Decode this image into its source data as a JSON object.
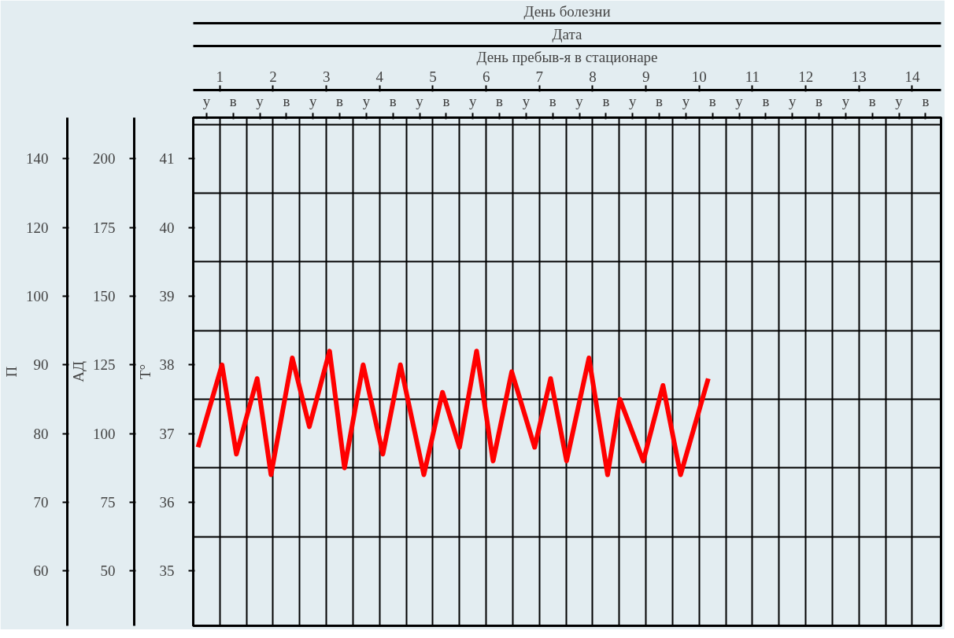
{
  "chart_data": {
    "type": "line",
    "xlabel": "День пребыв-я в стационаре",
    "ylabel": "Т°",
    "y2label": "АД",
    "y3label": "П",
    "annotations": [
      "Дата",
      "День болезни",
      "у",
      "в",
      "у",
      "в",
      "у",
      "в",
      "у",
      "в",
      "у",
      "в",
      "у",
      "в",
      "у",
      "в",
      "у",
      "в",
      "у",
      "в",
      "у",
      "в",
      "у",
      "в",
      "у",
      "в",
      "у",
      "в",
      "у",
      "в",
      "60",
      "70",
      "80",
      "90",
      "100",
      "120",
      "140"
    ],
    "x": [
      0.59,
      1.04,
      1.31,
      1.7,
      1.96,
      2.36,
      2.68,
      3.06,
      3.34,
      3.69,
      4.06,
      4.39,
      4.83,
      5.18,
      5.5,
      5.82,
      6.13,
      6.48,
      6.91,
      7.21,
      7.51,
      7.93,
      8.28,
      8.51,
      8.95,
      9.32,
      9.65,
      10.17
    ],
    "series": [
      {
        "color": "#ff0000",
        "values": [
          36.8,
          38.0,
          36.7,
          37.8,
          36.4,
          38.1,
          37.1,
          38.2,
          36.5,
          38.0,
          36.7,
          38.0,
          36.4,
          37.6,
          36.8,
          38.2,
          36.6,
          37.9,
          36.8,
          37.8,
          36.6,
          38.1,
          36.4,
          37.5,
          36.6,
          37.7,
          36.4,
          37.8
        ]
      }
    ],
    "xlim": [
      0.5,
      14.54
    ],
    "xticks": [
      1,
      2,
      3,
      4,
      5,
      6,
      7,
      8,
      9,
      10,
      11,
      12,
      13,
      14
    ],
    "ylim": [
      34.2,
      41.6
    ],
    "yticks": [
      35,
      36,
      37,
      38,
      39,
      40,
      41
    ],
    "y2lim": [
      30,
      215
    ],
    "y2ticks": [
      50,
      75,
      100,
      125,
      150,
      175,
      200
    ],
    "grid": true,
    "line_style": "solid",
    "marker": "none"
  }
}
